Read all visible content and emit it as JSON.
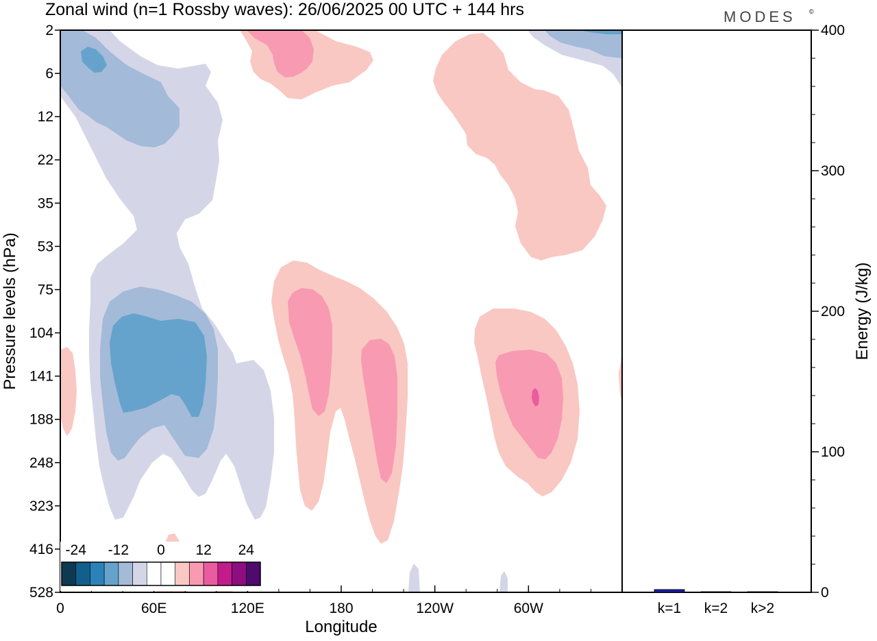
{
  "header": {
    "title": "Zonal wind (n=1 Rossby waves):  26/06/2025  00 UTC  + 144 hrs",
    "brand": "MODES"
  },
  "chart_data": [
    {
      "type": "heatmap",
      "title": "Zonal wind (n=1 Rossby waves):  26/06/2025  00 UTC  + 144 hrs",
      "xlabel": "Longitude",
      "ylabel": "Pressure levels (hPa)",
      "x_ticks": [
        "0",
        "60E",
        "120E",
        "180",
        "120W",
        "60W"
      ],
      "x_tick_degrees": [
        0,
        60,
        120,
        180,
        240,
        300
      ],
      "x_range": [
        0,
        360
      ],
      "y_ticks": [
        "2",
        "6",
        "12",
        "22",
        "35",
        "53",
        "75",
        "104",
        "141",
        "188",
        "248",
        "323",
        "416",
        "528"
      ],
      "y_scale": "model levels (top 2 hPa, bottom 528 hPa)",
      "colorbar": {
        "labels": [
          "-24",
          "-12",
          "0",
          "12",
          "24"
        ],
        "levels": [
          -30,
          -24,
          -18,
          -12,
          -6,
          -3,
          0,
          3,
          6,
          12,
          18,
          24,
          30
        ],
        "colors": [
          "#0d3a52",
          "#135f8c",
          "#2b82b8",
          "#65a3cc",
          "#a3bad8",
          "#d4d6e8",
          "#ffffff",
          "#ffffff",
          "#f9c8c2",
          "#f89ab2",
          "#ea5c9f",
          "#c21b8a",
          "#8e0d80",
          "#4e0a6c"
        ]
      },
      "regions": [
        {
          "sign": "negative",
          "level": "weak",
          "location": "upper-left stratosphere and down to ~323 hPa near 40-110E"
        },
        {
          "sign": "negative",
          "level": "moderate",
          "location": "2-12 hPa near 0-60E; 75-248 hPa near 35-95E"
        },
        {
          "sign": "negative",
          "level": "strong",
          "location": "~4 hPa near 15-25E; 104-188 hPa near 40-85E"
        },
        {
          "sign": "positive",
          "level": "weak",
          "location": "2-10 hPa near 100-160E; 2-60 hPa near 240-290W; 60-400 hPa near 155-205E; 110-300 hPa near 270-325E"
        },
        {
          "sign": "positive",
          "level": "moderate",
          "location": "90-190 hPa near 160-175E; 130-320 hPa near 195-215E; 125-230 hPa near 285-310E"
        },
        {
          "sign": "positive",
          "level": "strong",
          "location": "~160 hPa near 302E"
        }
      ]
    },
    {
      "type": "bar",
      "categories": [
        "k=1",
        "k=2",
        "k>2"
      ],
      "values": [
        2,
        0.3,
        0.2
      ],
      "ylabel": "Energy (J/kg)",
      "ylim": [
        0,
        400
      ],
      "y_ticks": [
        "0",
        "100",
        "200",
        "300",
        "400"
      ],
      "colors": [
        "#1a1aa6",
        "#000000",
        "#000000"
      ]
    }
  ]
}
